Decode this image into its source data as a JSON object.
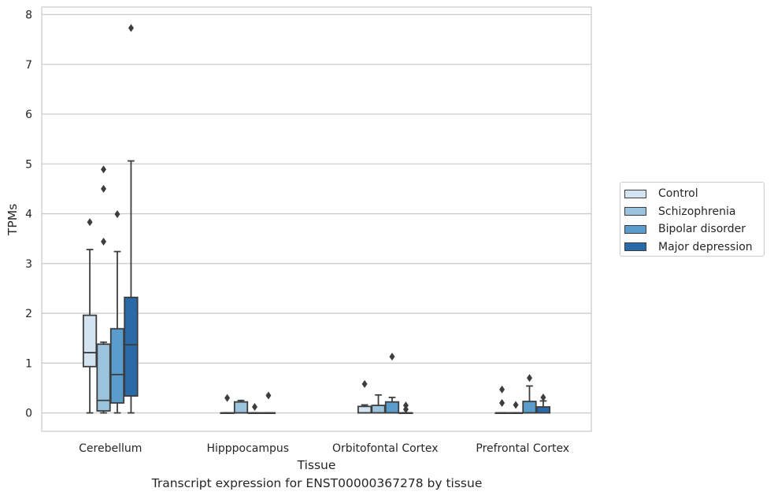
{
  "caption": "Transcript expression for ENST00000367278 by tissue",
  "chart_data": {
    "type": "box",
    "xlabel": "Tissue",
    "ylabel": "TPMs",
    "ylim": [
      -0.37,
      8.15
    ],
    "yticks": [
      0,
      1,
      2,
      3,
      4,
      5,
      6,
      7,
      8
    ],
    "grid": true,
    "legend_position": "right",
    "categories": [
      "Cerebellum",
      "Hipppocampus",
      "Orbitofontal Cortex",
      "Prefrontal Cortex"
    ],
    "series": [
      {
        "name": "Control",
        "color": "#d3e3f2",
        "boxes": [
          {
            "category": "Cerebellum",
            "whislo": 0,
            "q1": 0.93,
            "med": 1.21,
            "q3": 1.96,
            "whishi": 3.28,
            "fliers": [
              3.83
            ]
          },
          {
            "category": "Hipppocampus",
            "whislo": 0,
            "q1": 0,
            "med": 0,
            "q3": 0,
            "whishi": 0,
            "fliers": [
              0.3
            ]
          },
          {
            "category": "Orbitofontal Cortex",
            "whislo": 0,
            "q1": 0,
            "med": 0,
            "q3": 0.13,
            "whishi": 0.16,
            "fliers": [
              0.58
            ]
          },
          {
            "category": "Prefrontal Cortex",
            "whislo": 0,
            "q1": 0,
            "med": 0,
            "q3": 0,
            "whishi": 0,
            "fliers": [
              0.2,
              0.47
            ]
          }
        ]
      },
      {
        "name": "Schizophrenia",
        "color": "#9bc3dd",
        "boxes": [
          {
            "category": "Cerebellum",
            "whislo": 0,
            "q1": 0.04,
            "med": 0.25,
            "q3": 1.38,
            "whishi": 1.42,
            "fliers": [
              3.44,
              4.5,
              4.89
            ]
          },
          {
            "category": "Hipppocampus",
            "whislo": 0,
            "q1": 0,
            "med": 0,
            "q3": 0.22,
            "whishi": 0.25,
            "fliers": []
          },
          {
            "category": "Orbitofontal Cortex",
            "whislo": 0,
            "q1": 0,
            "med": 0,
            "q3": 0.15,
            "whishi": 0.36,
            "fliers": []
          },
          {
            "category": "Prefrontal Cortex",
            "whislo": 0,
            "q1": 0,
            "med": 0,
            "q3": 0,
            "whishi": 0,
            "fliers": [
              0.16
            ]
          }
        ]
      },
      {
        "name": "Bipolar disorder",
        "color": "#5a9ccb",
        "boxes": [
          {
            "category": "Cerebellum",
            "whislo": 0,
            "q1": 0.2,
            "med": 0.77,
            "q3": 1.69,
            "whishi": 3.24,
            "fliers": [
              3.99
            ]
          },
          {
            "category": "Hipppocampus",
            "whislo": 0,
            "q1": 0,
            "med": 0,
            "q3": 0,
            "whishi": 0,
            "fliers": [
              0.12
            ]
          },
          {
            "category": "Orbitofontal Cortex",
            "whislo": 0,
            "q1": 0,
            "med": 0,
            "q3": 0.22,
            "whishi": 0.31,
            "fliers": [
              1.13
            ]
          },
          {
            "category": "Prefrontal Cortex",
            "whislo": 0,
            "q1": 0,
            "med": 0,
            "q3": 0.23,
            "whishi": 0.54,
            "fliers": [
              0.7
            ]
          }
        ]
      },
      {
        "name": "Major depression",
        "color": "#2a6aa8",
        "boxes": [
          {
            "category": "Cerebellum",
            "whislo": 0,
            "q1": 0.34,
            "med": 1.37,
            "q3": 2.32,
            "whishi": 5.06,
            "fliers": [
              7.73
            ]
          },
          {
            "category": "Hipppocampus",
            "whislo": 0,
            "q1": 0,
            "med": 0,
            "q3": 0,
            "whishi": 0,
            "fliers": [
              0.35
            ]
          },
          {
            "category": "Orbitofontal Cortex",
            "whislo": 0,
            "q1": 0,
            "med": 0,
            "q3": 0,
            "whishi": 0,
            "fliers": [
              0.07,
              0.15
            ]
          },
          {
            "category": "Prefrontal Cortex",
            "whislo": 0,
            "q1": 0,
            "med": 0,
            "q3": 0.12,
            "whishi": 0.24,
            "fliers": [
              0.31
            ]
          }
        ]
      }
    ]
  }
}
